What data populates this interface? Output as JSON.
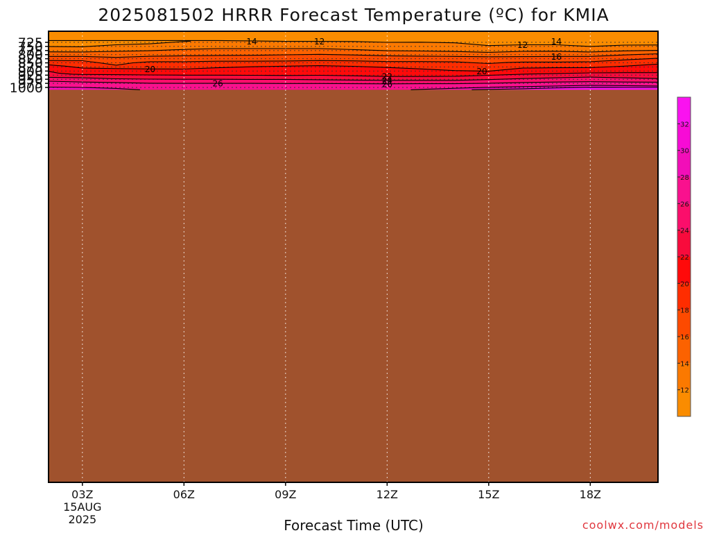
{
  "chart_data": {
    "type": "contour",
    "title": "2025081502 HRRR Forecast Temperature (ºC) for KMIA",
    "xlabel": "Forecast Time (UTC)",
    "credit": "coolwx.com/models",
    "x_tick_labels": [
      "03Z",
      "06Z",
      "09Z",
      "12Z",
      "15Z",
      "18Z"
    ],
    "x_date_label": [
      "15AUG",
      "2025"
    ],
    "x_hours": [
      3,
      6,
      9,
      12,
      15,
      18
    ],
    "xlim_hours": [
      2,
      20
    ],
    "y_tick_labels": [
      "725",
      "750",
      "775",
      "800",
      "825",
      "850",
      "875",
      "900",
      "925",
      "950",
      "975",
      "1000"
    ],
    "y_ticks": [
      725,
      750,
      775,
      800,
      825,
      850,
      875,
      900,
      925,
      950,
      975,
      1000
    ],
    "ylim": [
      718,
      1022
    ],
    "ground_pressure": 1014,
    "colorbar": {
      "labels": [
        "12",
        "14",
        "16",
        "18",
        "20",
        "22",
        "24",
        "26",
        "28",
        "30",
        "32"
      ],
      "levels": [
        12,
        14,
        16,
        18,
        20,
        22,
        24,
        26,
        28,
        30,
        32
      ],
      "colors": [
        "#fa8c00",
        "#fb7900",
        "#fc6200",
        "#fd4a00",
        "#fe2d00",
        "#ff0a0a",
        "#f80b3c",
        "#fb0e6b",
        "#f9118e",
        "#f20eb8",
        "#f70bd6",
        "#fa12f0"
      ]
    },
    "contours": [
      {
        "value": 12,
        "label": "12",
        "label_hours": [
          10.0,
          16.0
        ],
        "points": [
          [
            2,
            714
          ],
          [
            3,
            714
          ],
          [
            4,
            714
          ],
          [
            5,
            714
          ],
          [
            6,
            714
          ],
          [
            7,
            714
          ],
          [
            8,
            716
          ],
          [
            9,
            719
          ],
          [
            10,
            719
          ],
          [
            11,
            720
          ],
          [
            12,
            725
          ],
          [
            13,
            724
          ],
          [
            14,
            728
          ],
          [
            15,
            745
          ],
          [
            16,
            740
          ],
          [
            17,
            740
          ],
          [
            18,
            750
          ],
          [
            19,
            742
          ],
          [
            20,
            741
          ]
        ]
      },
      {
        "value": 14,
        "label": "14",
        "label_hours": [
          8.0,
          17.0
        ],
        "points": [
          [
            2,
            751
          ],
          [
            3,
            752
          ],
          [
            4,
            740
          ],
          [
            5,
            734
          ],
          [
            6,
            720
          ],
          [
            6.2,
            718
          ]
        ]
      },
      {
        "value": 14,
        "label": "",
        "label_hours": [],
        "points": [
          [
            2,
            783
          ],
          [
            3,
            784
          ],
          [
            4,
            780
          ],
          [
            5,
            776
          ],
          [
            6,
            768
          ],
          [
            7,
            763
          ],
          [
            8,
            763
          ],
          [
            9,
            763
          ],
          [
            10,
            763
          ],
          [
            11,
            769
          ],
          [
            12,
            776
          ],
          [
            13,
            778
          ],
          [
            14,
            781
          ],
          [
            15,
            786
          ],
          [
            16,
            780
          ],
          [
            17,
            779
          ],
          [
            18,
            784
          ],
          [
            19,
            777
          ],
          [
            20,
            774
          ]
        ]
      },
      {
        "value": 16,
        "label": "16",
        "label_hours": [
          17.0
        ],
        "points": [
          [
            2,
            811
          ],
          [
            3,
            811
          ],
          [
            4,
            817
          ],
          [
            5,
            810
          ],
          [
            6,
            807
          ],
          [
            7,
            805
          ],
          [
            8,
            804
          ],
          [
            9,
            801
          ],
          [
            10,
            798
          ],
          [
            11,
            802
          ],
          [
            12,
            807
          ],
          [
            13,
            809
          ],
          [
            14,
            811
          ],
          [
            15,
            813
          ],
          [
            16,
            812
          ],
          [
            17,
            811
          ],
          [
            18,
            811
          ],
          [
            19,
            802
          ],
          [
            20,
            795
          ]
        ]
      },
      {
        "value": 18,
        "label": "",
        "label_hours": [],
        "points": [
          [
            2,
            836
          ],
          [
            3,
            837
          ],
          [
            3.5,
            850
          ],
          [
            4,
            864
          ],
          [
            4.5,
            850
          ],
          [
            5,
            843
          ],
          [
            6,
            843
          ],
          [
            7,
            840
          ],
          [
            8,
            840
          ],
          [
            9,
            839
          ],
          [
            10,
            836
          ],
          [
            11,
            838
          ],
          [
            12,
            842
          ],
          [
            13,
            842
          ],
          [
            14,
            844
          ],
          [
            15,
            854
          ],
          [
            15.5,
            848
          ],
          [
            16,
            845
          ],
          [
            17,
            845
          ],
          [
            18,
            843
          ],
          [
            19,
            832
          ],
          [
            20,
            822
          ]
        ]
      },
      {
        "value": 20,
        "label": "20",
        "label_hours": [
          5.0,
          14.8
        ],
        "points": [
          [
            2,
            862
          ],
          [
            2.5,
            870
          ],
          [
            3,
            882
          ],
          [
            4,
            885
          ],
          [
            5,
            887
          ],
          [
            6,
            888
          ],
          [
            7,
            880
          ],
          [
            8,
            874
          ],
          [
            9,
            870
          ],
          [
            10,
            867
          ],
          [
            11,
            871
          ],
          [
            12,
            878
          ],
          [
            13,
            887
          ],
          [
            14,
            897
          ],
          [
            15,
            901
          ],
          [
            16,
            882
          ],
          [
            17,
            880
          ],
          [
            18,
            879
          ],
          [
            19,
            870
          ],
          [
            20,
            858
          ]
        ]
      },
      {
        "value": 22,
        "label": "22",
        "label_hours": [
          12.0
        ],
        "points": [
          [
            2,
            902
          ],
          [
            2.3,
            913
          ],
          [
            2.7,
            919
          ],
          [
            3,
            921
          ],
          [
            4,
            922
          ],
          [
            5,
            924
          ],
          [
            6,
            925
          ],
          [
            7,
            925
          ],
          [
            8,
            926
          ],
          [
            9,
            927
          ],
          [
            10,
            926
          ],
          [
            11,
            929
          ],
          [
            12,
            933
          ],
          [
            13,
            933
          ],
          [
            14,
            932
          ],
          [
            15,
            926
          ],
          [
            16,
            919
          ],
          [
            17,
            915
          ],
          [
            18,
            911
          ],
          [
            19,
            910
          ],
          [
            20,
            910
          ]
        ]
      },
      {
        "value": 24,
        "label": "24",
        "label_hours": [
          12.0
        ],
        "points": [
          [
            2,
            938
          ],
          [
            3,
            941
          ],
          [
            4,
            947
          ],
          [
            5,
            949
          ],
          [
            6,
            950
          ],
          [
            7,
            950
          ],
          [
            8,
            951
          ],
          [
            9,
            951
          ],
          [
            10,
            953
          ],
          [
            11,
            955
          ],
          [
            12,
            957
          ],
          [
            13,
            957
          ],
          [
            14,
            957
          ],
          [
            15,
            952
          ],
          [
            16,
            946
          ],
          [
            17,
            941
          ],
          [
            18,
            937
          ],
          [
            19,
            941
          ],
          [
            20,
            946
          ]
        ]
      },
      {
        "value": 26,
        "label": "26",
        "label_hours": [
          7.0,
          12.0
        ],
        "points": [
          [
            2,
            962
          ],
          [
            3,
            967
          ],
          [
            4,
            970
          ],
          [
            5,
            974
          ],
          [
            6,
            975
          ],
          [
            7,
            975
          ],
          [
            8,
            975
          ],
          [
            9,
            976
          ],
          [
            10,
            976
          ],
          [
            11,
            977
          ],
          [
            12,
            978
          ],
          [
            13,
            977
          ],
          [
            14,
            977
          ],
          [
            15,
            974
          ],
          [
            16,
            970
          ],
          [
            17,
            967
          ],
          [
            18,
            965
          ],
          [
            19,
            967
          ],
          [
            20,
            968
          ]
        ]
      },
      {
        "value": 28,
        "label": "",
        "label_hours": [],
        "points": [
          [
            2,
            998
          ],
          [
            3,
            1000
          ],
          [
            4,
            1006
          ],
          [
            4.5,
            1012
          ],
          [
            4.7,
            1014
          ]
        ]
      },
      {
        "value": 28,
        "label": "",
        "label_hours": [],
        "points": [
          [
            12.7,
            1014
          ],
          [
            14,
            1005
          ],
          [
            15,
            999
          ],
          [
            16,
            995
          ],
          [
            17,
            991
          ],
          [
            18,
            987
          ],
          [
            19,
            989
          ],
          [
            20,
            991
          ]
        ]
      },
      {
        "value": 30,
        "label": "",
        "label_hours": [],
        "points": [
          [
            14.5,
            1014
          ],
          [
            16,
            1008
          ],
          [
            17,
            1003
          ],
          [
            18,
            999
          ],
          [
            19,
            1000
          ],
          [
            20,
            1000
          ]
        ]
      }
    ]
  }
}
